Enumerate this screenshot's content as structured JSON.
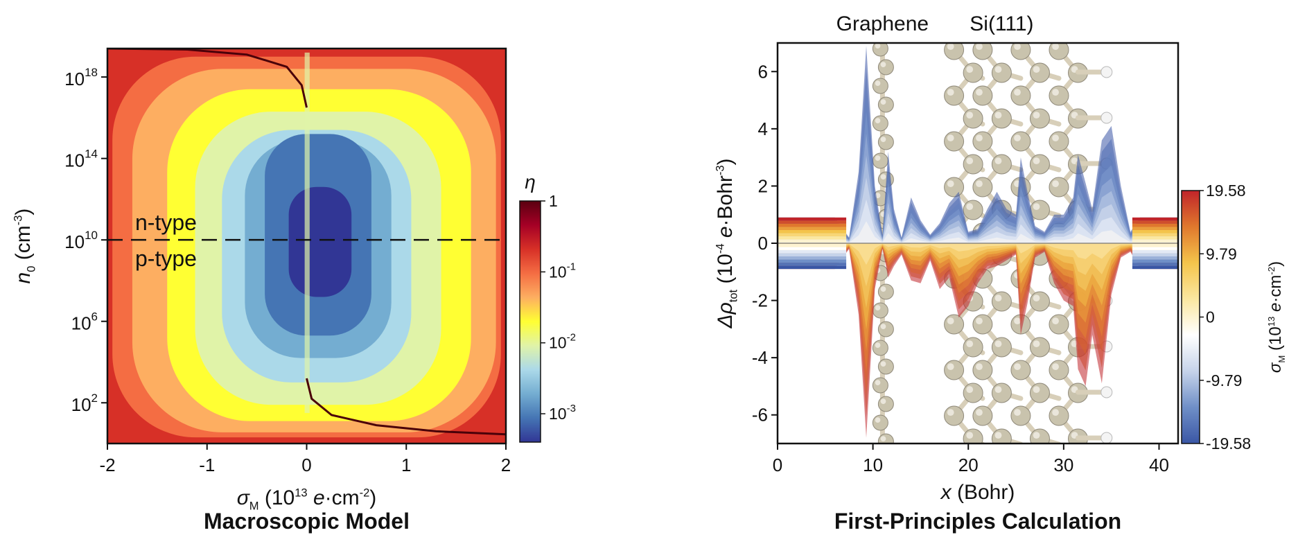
{
  "chart_data": [
    {
      "type": "heatmap",
      "caption": "Macroscopic Model",
      "xlabel": {
        "symbol": "σ",
        "sub": "M",
        "rest": " (10",
        "sup": "13",
        "tail": " e·cm",
        "tailsup": "-2",
        "close": ")"
      },
      "ylabel": {
        "symbol": "n",
        "sub": "0",
        "rest": " (cm",
        "sup": "-3",
        "close": ")"
      },
      "xlim": [
        -2,
        2
      ],
      "ylim_log10": [
        0,
        19.4
      ],
      "x_ticks": [
        {
          "value": -2,
          "label": "-2"
        },
        {
          "value": -1,
          "label": "-1"
        },
        {
          "value": 0,
          "label": "0"
        },
        {
          "value": 1,
          "label": "1"
        },
        {
          "value": 2,
          "label": "2"
        }
      ],
      "y_ticks": [
        {
          "exp": 2,
          "base": "10",
          "sup": "2"
        },
        {
          "exp": 6,
          "base": "10",
          "sup": "6"
        },
        {
          "exp": 10,
          "base": "10",
          "sup": "10"
        },
        {
          "exp": 14,
          "base": "10",
          "sup": "14"
        },
        {
          "exp": 18,
          "base": "10",
          "sup": "18"
        }
      ],
      "divider_exp": 10,
      "region_labels": [
        "n-type",
        "p-type"
      ],
      "colorbar": {
        "title": "η",
        "scale": "log",
        "range_log10": [
          -3.4,
          0
        ],
        "ticks": [
          {
            "exp": 0,
            "label": "1"
          },
          {
            "exp": -1,
            "base": "10",
            "sup": "-1"
          },
          {
            "exp": -2,
            "base": "10",
            "sup": "-2"
          },
          {
            "exp": -3,
            "base": "10",
            "sup": "-3"
          }
        ]
      },
      "colors": [
        "#313695",
        "#4575b4",
        "#74add1",
        "#abd9e9",
        "#e0f3a8",
        "#ffff33",
        "#fdae61",
        "#f46d43",
        "#d73027",
        "#a50026",
        "#5a0010"
      ]
    },
    {
      "type": "line",
      "caption": "First-Principles Calculation",
      "xlabel": {
        "symbol": "x",
        "rest": " (Bohr)"
      },
      "ylabel": {
        "symbol": "Δρ",
        "sub": "tot",
        "rest": " (10",
        "sup": "-4",
        "tail": " e·Bohr",
        "tailsup": "-3",
        "close": ")"
      },
      "xlim": [
        0,
        42
      ],
      "ylim": [
        -7,
        7
      ],
      "x_ticks": [
        0,
        10,
        20,
        30,
        40
      ],
      "y_ticks": [
        -6,
        -4,
        -2,
        0,
        2,
        4,
        6
      ],
      "structure_labels": [
        "Graphene",
        "Si(111)"
      ],
      "colorbar": {
        "label": {
          "symbol": "σ",
          "sub": "M",
          "rest": " (10",
          "sup": "13",
          "tail": " e·cm",
          "tailsup": "-2",
          "close": ")"
        },
        "range": [
          -19.58,
          19.58
        ],
        "ticks": [
          {
            "value": 19.58,
            "label": "19.58"
          },
          {
            "value": 9.79,
            "label": "9.79"
          },
          {
            "value": 0,
            "label": "0"
          },
          {
            "value": -9.79,
            "label": "-9.79"
          },
          {
            "value": -19.58,
            "label": "-19.58"
          }
        ]
      },
      "colors": [
        "#3a56a5",
        "#6f8fc7",
        "#c6d3ea",
        "#ffffff",
        "#fbe7a0",
        "#f4c44b",
        "#e0782d",
        "#c0242a"
      ],
      "series_envelope": {
        "x": [
          0,
          6,
          7.5,
          8.5,
          9.3,
          10.2,
          11,
          11.6,
          12.2,
          13,
          14,
          15,
          16,
          17,
          18,
          19,
          20,
          21,
          22,
          23,
          24,
          25,
          25.5,
          26.2,
          27,
          28,
          29,
          30,
          31,
          31.5,
          32.3,
          33,
          34,
          35,
          36,
          37,
          38,
          42
        ],
        "y_max": [
          0.9,
          0.9,
          0.2,
          2.5,
          6.9,
          2.0,
          0.3,
          3.2,
          1.2,
          0.2,
          1.6,
          0.8,
          0.3,
          0.7,
          1.4,
          1.8,
          0.4,
          0.5,
          1.2,
          1.8,
          1.2,
          1.0,
          3.0,
          1.8,
          0.6,
          0.4,
          1.0,
          1.0,
          1.6,
          3.1,
          2.1,
          1.2,
          3.6,
          4.1,
          2.0,
          0.4,
          0.9,
          0.9
        ],
        "y_min": [
          -0.9,
          -0.9,
          -0.2,
          -2.5,
          -6.8,
          -1.6,
          -0.2,
          -1.2,
          -0.8,
          -0.4,
          -1.3,
          -1.4,
          -0.6,
          -1.6,
          -1.2,
          -2.6,
          -2.2,
          -1.4,
          -0.9,
          -0.8,
          -0.6,
          -0.4,
          -3.2,
          -2.1,
          -0.5,
          -0.3,
          -1.4,
          -2.0,
          -2.2,
          -4.4,
          -5.0,
          -3.2,
          -4.9,
          -1.8,
          -0.5,
          -0.3,
          -0.9,
          -0.9
        ]
      }
    }
  ]
}
